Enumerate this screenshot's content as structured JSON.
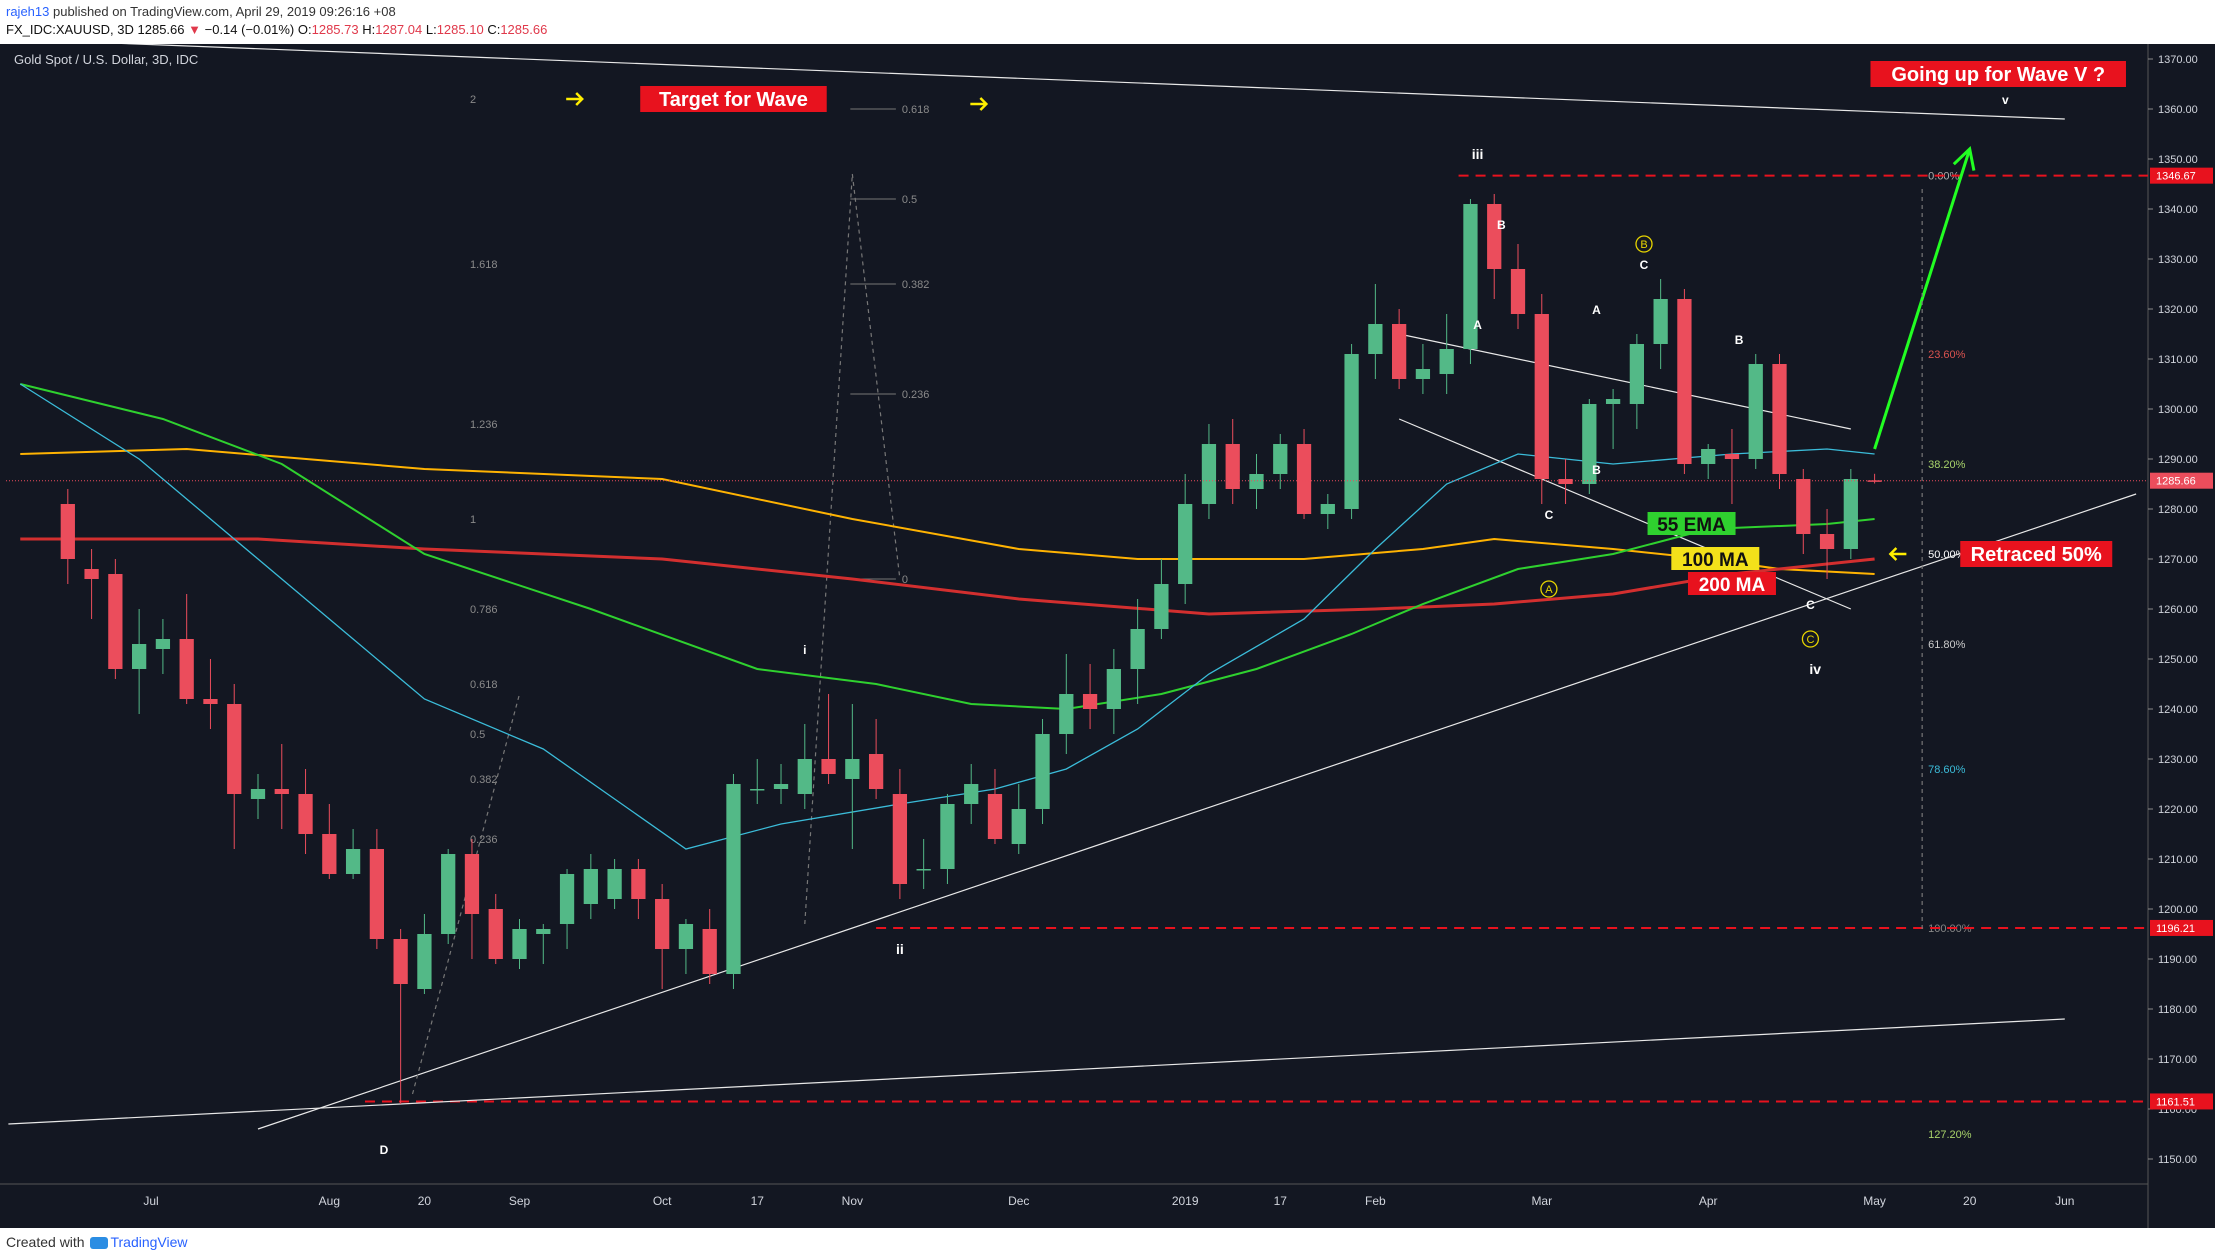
{
  "header": {
    "user": "rajeh13",
    "published": " published on TradingView.com, April 29, 2019 09:26:16 +08",
    "symbol": "FX_IDC:XAUUSD, 3D",
    "last": "1285.66",
    "change_arrow": "▼",
    "change": "−0.14 (−0.01%)",
    "o_label": "O:",
    "o": "1285.73",
    "h_label": "H:",
    "h": "1287.04",
    "l_label": "L:",
    "l": "1285.10",
    "c_label": "C:",
    "c": "1285.66"
  },
  "footer": {
    "created": "Created with",
    "brand": "TradingView"
  },
  "colors": {
    "background": "#131722",
    "up": "#53b987",
    "down": "#eb4d5c",
    "ema55": "#2fd12f",
    "ma100": "#ffb302",
    "ma200": "#d32f2f",
    "ema_fast": "#3bbcd9",
    "annotation_bg": "#e8121e",
    "arrow_yellow": "#ffee00",
    "arrow_green": "#22ff22"
  },
  "chart_data": {
    "type": "candlestick",
    "title": "Gold Spot / U.S. Dollar, 3D, IDC",
    "ylim": [
      1145,
      1373
    ],
    "y_ticks": [
      1150,
      1160,
      1170,
      1180,
      1190,
      1200,
      1210,
      1220,
      1230,
      1240,
      1250,
      1260,
      1270,
      1280,
      1290,
      1300,
      1310,
      1320,
      1330,
      1340,
      1350,
      1360,
      1370
    ],
    "x_ticks": [
      {
        "i": 3.5,
        "label": "Jul"
      },
      {
        "i": 11,
        "label": "Aug"
      },
      {
        "i": 15,
        "label": "20"
      },
      {
        "i": 19,
        "label": "Sep"
      },
      {
        "i": 25,
        "label": "Oct"
      },
      {
        "i": 29,
        "label": "17"
      },
      {
        "i": 33,
        "label": "Nov"
      },
      {
        "i": 40,
        "label": "Dec"
      },
      {
        "i": 47,
        "label": "2019"
      },
      {
        "i": 51,
        "label": "17"
      },
      {
        "i": 55,
        "label": "Feb"
      },
      {
        "i": 62,
        "label": "Mar"
      },
      {
        "i": 69,
        "label": "Apr"
      },
      {
        "i": 76,
        "label": "May"
      },
      {
        "i": 80,
        "label": "20"
      },
      {
        "i": 84,
        "label": "Jun"
      }
    ],
    "candles": [
      {
        "o": 1281,
        "h": 1284,
        "l": 1265,
        "c": 1270
      },
      {
        "o": 1268,
        "h": 1272,
        "l": 1258,
        "c": 1266
      },
      {
        "o": 1267,
        "h": 1270,
        "l": 1246,
        "c": 1248
      },
      {
        "o": 1248,
        "h": 1260,
        "l": 1239,
        "c": 1253
      },
      {
        "o": 1252,
        "h": 1258,
        "l": 1247,
        "c": 1254
      },
      {
        "o": 1254,
        "h": 1263,
        "l": 1241,
        "c": 1242
      },
      {
        "o": 1242,
        "h": 1250,
        "l": 1236,
        "c": 1241
      },
      {
        "o": 1241,
        "h": 1245,
        "l": 1212,
        "c": 1223
      },
      {
        "o": 1222,
        "h": 1227,
        "l": 1218,
        "c": 1224
      },
      {
        "o": 1224,
        "h": 1233,
        "l": 1216,
        "c": 1223
      },
      {
        "o": 1223,
        "h": 1228,
        "l": 1211,
        "c": 1215
      },
      {
        "o": 1215,
        "h": 1221,
        "l": 1206,
        "c": 1207
      },
      {
        "o": 1207,
        "h": 1216,
        "l": 1206,
        "c": 1212
      },
      {
        "o": 1212,
        "h": 1216,
        "l": 1192,
        "c": 1194
      },
      {
        "o": 1194,
        "h": 1196,
        "l": 1161,
        "c": 1185
      },
      {
        "o": 1184,
        "h": 1199,
        "l": 1183,
        "c": 1195
      },
      {
        "o": 1195,
        "h": 1212,
        "l": 1193,
        "c": 1211
      },
      {
        "o": 1211,
        "h": 1214,
        "l": 1190,
        "c": 1199
      },
      {
        "o": 1200,
        "h": 1203,
        "l": 1189,
        "c": 1190
      },
      {
        "o": 1190,
        "h": 1198,
        "l": 1188,
        "c": 1196
      },
      {
        "o": 1195,
        "h": 1197,
        "l": 1189,
        "c": 1196
      },
      {
        "o": 1197,
        "h": 1208,
        "l": 1192,
        "c": 1207
      },
      {
        "o": 1201,
        "h": 1211,
        "l": 1198,
        "c": 1208
      },
      {
        "o": 1202,
        "h": 1210,
        "l": 1200,
        "c": 1208
      },
      {
        "o": 1208,
        "h": 1210,
        "l": 1198,
        "c": 1202
      },
      {
        "o": 1202,
        "h": 1205,
        "l": 1184,
        "c": 1192
      },
      {
        "o": 1192,
        "h": 1198,
        "l": 1187,
        "c": 1197
      },
      {
        "o": 1196,
        "h": 1200,
        "l": 1185,
        "c": 1187
      },
      {
        "o": 1187,
        "h": 1227,
        "l": 1184,
        "c": 1225
      },
      {
        "o": 1224,
        "h": 1230,
        "l": 1221,
        "c": 1224
      },
      {
        "o": 1224,
        "h": 1229,
        "l": 1221,
        "c": 1225
      },
      {
        "o": 1223,
        "h": 1237,
        "l": 1220,
        "c": 1230
      },
      {
        "o": 1230,
        "h": 1243,
        "l": 1225,
        "c": 1227
      },
      {
        "o": 1226,
        "h": 1241,
        "l": 1212,
        "c": 1230
      },
      {
        "o": 1231,
        "h": 1238,
        "l": 1222,
        "c": 1224
      },
      {
        "o": 1223,
        "h": 1228,
        "l": 1202,
        "c": 1205
      },
      {
        "o": 1208,
        "h": 1214,
        "l": 1204,
        "c": 1208
      },
      {
        "o": 1208,
        "h": 1223,
        "l": 1205,
        "c": 1221
      },
      {
        "o": 1221,
        "h": 1229,
        "l": 1217,
        "c": 1225
      },
      {
        "o": 1223,
        "h": 1228,
        "l": 1213,
        "c": 1214
      },
      {
        "o": 1213,
        "h": 1225,
        "l": 1211,
        "c": 1220
      },
      {
        "o": 1220,
        "h": 1238,
        "l": 1217,
        "c": 1235
      },
      {
        "o": 1235,
        "h": 1251,
        "l": 1231,
        "c": 1243
      },
      {
        "o": 1243,
        "h": 1249,
        "l": 1236,
        "c": 1240
      },
      {
        "o": 1240,
        "h": 1252,
        "l": 1235,
        "c": 1248
      },
      {
        "o": 1248,
        "h": 1262,
        "l": 1241,
        "c": 1256
      },
      {
        "o": 1256,
        "h": 1270,
        "l": 1254,
        "c": 1265
      },
      {
        "o": 1265,
        "h": 1287,
        "l": 1261,
        "c": 1281
      },
      {
        "o": 1281,
        "h": 1297,
        "l": 1278,
        "c": 1293
      },
      {
        "o": 1293,
        "h": 1298,
        "l": 1281,
        "c": 1284
      },
      {
        "o": 1284,
        "h": 1291,
        "l": 1280,
        "c": 1287
      },
      {
        "o": 1287,
        "h": 1295,
        "l": 1284,
        "c": 1293
      },
      {
        "o": 1293,
        "h": 1296,
        "l": 1278,
        "c": 1279
      },
      {
        "o": 1279,
        "h": 1283,
        "l": 1276,
        "c": 1281
      },
      {
        "o": 1280,
        "h": 1313,
        "l": 1278,
        "c": 1311
      },
      {
        "o": 1311,
        "h": 1325,
        "l": 1306,
        "c": 1317
      },
      {
        "o": 1317,
        "h": 1320,
        "l": 1304,
        "c": 1306
      },
      {
        "o": 1306,
        "h": 1313,
        "l": 1303,
        "c": 1308
      },
      {
        "o": 1307,
        "h": 1319,
        "l": 1303,
        "c": 1312
      },
      {
        "o": 1312,
        "h": 1342,
        "l": 1309,
        "c": 1341
      },
      {
        "o": 1341,
        "h": 1343,
        "l": 1322,
        "c": 1328
      },
      {
        "o": 1328,
        "h": 1333,
        "l": 1316,
        "c": 1319
      },
      {
        "o": 1319,
        "h": 1323,
        "l": 1281,
        "c": 1286
      },
      {
        "o": 1286,
        "h": 1290,
        "l": 1281,
        "c": 1285
      },
      {
        "o": 1285,
        "h": 1302,
        "l": 1283,
        "c": 1301
      },
      {
        "o": 1301,
        "h": 1304,
        "l": 1292,
        "c": 1302
      },
      {
        "o": 1301,
        "h": 1315,
        "l": 1296,
        "c": 1313
      },
      {
        "o": 1313,
        "h": 1326,
        "l": 1308,
        "c": 1322
      },
      {
        "o": 1322,
        "h": 1324,
        "l": 1287,
        "c": 1289
      },
      {
        "o": 1289,
        "h": 1293,
        "l": 1286,
        "c": 1292
      },
      {
        "o": 1291,
        "h": 1296,
        "l": 1281,
        "c": 1290
      },
      {
        "o": 1290,
        "h": 1311,
        "l": 1288,
        "c": 1309
      },
      {
        "o": 1309,
        "h": 1311,
        "l": 1284,
        "c": 1287
      },
      {
        "o": 1286,
        "h": 1288,
        "l": 1271,
        "c": 1275
      },
      {
        "o": 1275,
        "h": 1280,
        "l": 1266,
        "c": 1272
      },
      {
        "o": 1272,
        "h": 1288,
        "l": 1270,
        "c": 1286
      },
      {
        "o": 1285.73,
        "h": 1287.04,
        "l": 1285.1,
        "c": 1285.66
      }
    ],
    "series": [
      {
        "name": "100 MA",
        "color_key": "ma100",
        "points": [
          [
            -2,
            1291
          ],
          [
            5,
            1292
          ],
          [
            15,
            1288
          ],
          [
            25,
            1286
          ],
          [
            33,
            1278
          ],
          [
            40,
            1272
          ],
          [
            45,
            1270
          ],
          [
            52,
            1270
          ],
          [
            57,
            1272
          ],
          [
            60,
            1274
          ],
          [
            65,
            1272
          ],
          [
            69,
            1270
          ],
          [
            72,
            1268
          ],
          [
            76,
            1267
          ]
        ]
      },
      {
        "name": "200 MA",
        "color_key": "ma200",
        "points": [
          [
            -2,
            1274
          ],
          [
            8,
            1274
          ],
          [
            15,
            1272
          ],
          [
            25,
            1270
          ],
          [
            33,
            1266
          ],
          [
            40,
            1262
          ],
          [
            48,
            1259
          ],
          [
            55,
            1260
          ],
          [
            60,
            1261
          ],
          [
            65,
            1263
          ],
          [
            70,
            1267
          ],
          [
            76,
            1270
          ]
        ]
      },
      {
        "name": "55 EMA",
        "color_key": "ema55",
        "points": [
          [
            -2,
            1305
          ],
          [
            4,
            1298
          ],
          [
            9,
            1289
          ],
          [
            15,
            1271
          ],
          [
            22,
            1260
          ],
          [
            29,
            1248
          ],
          [
            34,
            1245
          ],
          [
            38,
            1241
          ],
          [
            42,
            1240
          ],
          [
            46,
            1243
          ],
          [
            50,
            1248
          ],
          [
            54,
            1255
          ],
          [
            57,
            1261
          ],
          [
            61,
            1268
          ],
          [
            65,
            1271
          ],
          [
            69,
            1276
          ],
          [
            74,
            1277
          ],
          [
            76,
            1278
          ]
        ]
      },
      {
        "name": "",
        "color_key": "ema_fast",
        "points": [
          [
            -2,
            1305
          ],
          [
            3,
            1290
          ],
          [
            8,
            1270
          ],
          [
            15,
            1242
          ],
          [
            20,
            1232
          ],
          [
            26,
            1212
          ],
          [
            30,
            1217
          ],
          [
            35,
            1221
          ],
          [
            39,
            1224
          ],
          [
            42,
            1228
          ],
          [
            45,
            1236
          ],
          [
            48,
            1247
          ],
          [
            52,
            1258
          ],
          [
            55,
            1272
          ],
          [
            58,
            1285
          ],
          [
            61,
            1291
          ],
          [
            65,
            1289
          ],
          [
            70,
            1291
          ],
          [
            74,
            1292
          ],
          [
            76,
            1291
          ]
        ]
      }
    ],
    "trendlines": [
      {
        "points": [
          [
            -2.5,
            1374
          ],
          [
            84,
            1358
          ]
        ],
        "color": "#e8e8e8",
        "dash": false
      },
      {
        "points": [
          [
            -2.5,
            1157
          ],
          [
            84,
            1178
          ]
        ],
        "color": "#e8e8e8",
        "dash": false
      },
      {
        "points": [
          [
            8,
            1156
          ],
          [
            87,
            1283
          ]
        ],
        "color": "#e8e8e8",
        "dash": false
      },
      {
        "points": [
          [
            56,
            1315
          ],
          [
            75,
            1296
          ]
        ],
        "color": "#e8e8e8",
        "dash": false
      },
      {
        "points": [
          [
            56,
            1298
          ],
          [
            75,
            1260
          ]
        ],
        "color": "#e8e8e8",
        "dash": false
      },
      {
        "points": [
          [
            76,
            1292
          ],
          [
            80,
            1352
          ]
        ],
        "color": "#22ff22",
        "dash": false,
        "arrow": true,
        "width": 3
      },
      {
        "points": [
          [
            14.5,
            1163
          ],
          [
            19,
            1243
          ]
        ],
        "color": "#777777",
        "dash": true
      },
      {
        "points": [
          [
            31,
            1197
          ],
          [
            33,
            1347
          ]
        ],
        "color": "#777777",
        "dash": true
      },
      {
        "points": [
          [
            33,
            1347
          ],
          [
            35,
            1266
          ]
        ],
        "color": "#777777",
        "dash": true
      },
      {
        "points": [
          [
            78,
            1344
          ],
          [
            78,
            1196
          ]
        ],
        "color": "#777777",
        "dash": true
      }
    ],
    "hlines": [
      {
        "y": 1346.67,
        "from": 58.5,
        "label": "1346.67"
      },
      {
        "y": 1196.21,
        "from": 34,
        "label": "1196.21"
      },
      {
        "y": 1161.51,
        "from": 12.5,
        "label": "1161.51"
      }
    ],
    "last_price": "1285.66",
    "fib_ext": [
      {
        "label": "2",
        "y": 1362
      },
      {
        "label": "1.618",
        "y": 1329
      },
      {
        "label": "1.236",
        "y": 1297
      },
      {
        "label": "1",
        "y": 1278
      },
      {
        "label": "0.786",
        "y": 1260
      },
      {
        "label": "0.618",
        "y": 1245
      },
      {
        "label": "0.5",
        "y": 1235
      },
      {
        "label": "0.382",
        "y": 1226
      },
      {
        "label": "0.236",
        "y": 1214
      }
    ],
    "fib_mid": [
      {
        "label": "0.618",
        "y": 1360
      },
      {
        "label": "0.5",
        "y": 1342
      },
      {
        "label": "0.382",
        "y": 1325
      },
      {
        "label": "0.236",
        "y": 1303
      },
      {
        "label": "0",
        "y": 1266
      }
    ],
    "fib_right": [
      {
        "label": "0.00%",
        "y": 1346.67,
        "color": "#b0b0b0"
      },
      {
        "label": "23.60%",
        "y": 1311,
        "color": "#d9534f"
      },
      {
        "label": "38.20%",
        "y": 1289,
        "color": "#a8d36a"
      },
      {
        "label": "50.00%",
        "y": 1271,
        "color": "#ffffff"
      },
      {
        "label": "61.80%",
        "y": 1253,
        "color": "#cccccc"
      },
      {
        "label": "78.60%",
        "y": 1228,
        "color": "#3bbcd9"
      },
      {
        "label": "100.00%",
        "y": 1196.21,
        "color": "#888888"
      },
      {
        "label": "127.20%",
        "y": 1155,
        "color": "#a8d36a"
      }
    ],
    "wave_labels": [
      {
        "text": "i",
        "i": 31,
        "y": 1251
      },
      {
        "text": "ii",
        "i": 35,
        "y": 1191
      },
      {
        "text": "iii",
        "i": 59.3,
        "y": 1350
      },
      {
        "text": "iv",
        "i": 73.5,
        "y": 1247
      },
      {
        "text": "v",
        "i": 81.5,
        "y": 1361
      },
      {
        "text": "D",
        "i": 13.3,
        "y": 1151
      },
      {
        "text": "A",
        "i": 59.3,
        "y": 1316
      },
      {
        "text": "B",
        "i": 60.3,
        "y": 1336
      },
      {
        "text": "C",
        "i": 62.3,
        "y": 1278
      },
      {
        "text": "B",
        "i": 64.3,
        "y": 1287
      },
      {
        "text": "A",
        "i": 64.3,
        "y": 1319
      },
      {
        "text": "C",
        "i": 66.3,
        "y": 1328
      },
      {
        "text": "B",
        "i": 70.3,
        "y": 1313
      },
      {
        "text": "C",
        "i": 73.3,
        "y": 1260
      }
    ],
    "circled_labels": [
      {
        "text": "B",
        "i": 66.3,
        "y": 1333
      },
      {
        "text": "A",
        "i": 62.3,
        "y": 1264
      },
      {
        "text": "C",
        "i": 73.3,
        "y": 1254
      }
    ],
    "ma_labels": [
      {
        "text": "55 EMA",
        "i": 68.3,
        "y": 1277,
        "bg": "#2fd12f"
      },
      {
        "text": "100 MA",
        "i": 69.3,
        "y": 1270,
        "bg": "#f3e11a"
      },
      {
        "text": "200 MA",
        "i": 70,
        "y": 1265,
        "bg": "#e8121e"
      }
    ],
    "annotations": [
      {
        "text": "Target for Wave",
        "i": 28,
        "y": 1362
      },
      {
        "text": "Going up for Wave V ?",
        "i": 81.2,
        "y": 1367
      },
      {
        "text": "Retraced 50%",
        "i": 82.8,
        "y": 1271
      }
    ],
    "yellow_arrows": [
      {
        "i": 21.3,
        "y": 1362
      },
      {
        "i": 38.3,
        "y": 1361
      },
      {
        "i": 77,
        "y": 1271,
        "dir": "left"
      }
    ]
  }
}
